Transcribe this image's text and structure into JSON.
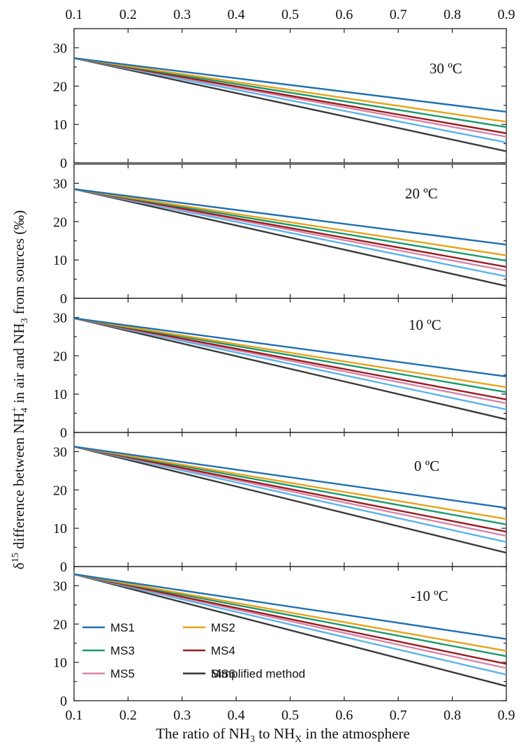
{
  "chart_data": {
    "type": "line",
    "x_axis": {
      "label_parts": [
        "The ratio of NH",
        "3",
        " to NH",
        "X",
        " in the atmosphere"
      ],
      "range": [
        0.1,
        0.9
      ],
      "ticks": [
        "0.1",
        "0.2",
        "0.3",
        "0.4",
        "0.5",
        "0.6",
        "0.7",
        "0.8",
        "0.9"
      ]
    },
    "y_axis": {
      "label_parts": [
        "δ",
        "15",
        " difference between NH",
        "4",
        "+",
        " in air and NH",
        "3",
        " from sources (‰)"
      ],
      "range": [
        0,
        35
      ],
      "ticks": [
        "0",
        "10",
        "20",
        "30"
      ]
    },
    "legend": {
      "placement": "bottom-left of last panel",
      "entries": [
        "MS1",
        "MS2",
        "MS3",
        "MS4",
        "MS5",
        "MS6",
        "Simplified method"
      ]
    },
    "series_colors": {
      "MS1": "#1f6fb2",
      "MS2": "#e8a21a",
      "MS3": "#1a9a6c",
      "MS4": "#9a1a1e",
      "MS5": "#d884a8",
      "MS6": "#5ab4ea",
      "Simplified method": "#3a3a3a"
    },
    "x": [
      0.1,
      0.9
    ],
    "panels": [
      {
        "label": "30 ºC",
        "series": [
          {
            "name": "MS1",
            "values": [
              27.3,
              13.3
            ]
          },
          {
            "name": "MS2",
            "values": [
              27.3,
              10.7
            ]
          },
          {
            "name": "MS3",
            "values": [
              27.3,
              9.3
            ]
          },
          {
            "name": "MS4",
            "values": [
              27.3,
              7.7
            ]
          },
          {
            "name": "MS5",
            "values": [
              27.3,
              6.8
            ]
          },
          {
            "name": "MS6",
            "values": [
              27.3,
              5.3
            ]
          },
          {
            "name": "Simplified method",
            "values": [
              27.3,
              3.0
            ]
          }
        ]
      },
      {
        "label": "20 ºC",
        "series": [
          {
            "name": "MS1",
            "values": [
              28.5,
              14.0
            ]
          },
          {
            "name": "MS2",
            "values": [
              28.5,
              11.2
            ]
          },
          {
            "name": "MS3",
            "values": [
              28.5,
              9.8
            ]
          },
          {
            "name": "MS4",
            "values": [
              28.5,
              8.2
            ]
          },
          {
            "name": "MS5",
            "values": [
              28.5,
              7.2
            ]
          },
          {
            "name": "MS6",
            "values": [
              28.5,
              5.7
            ]
          },
          {
            "name": "Simplified method",
            "values": [
              28.5,
              3.2
            ]
          }
        ]
      },
      {
        "label": "10 ºC",
        "series": [
          {
            "name": "MS1",
            "values": [
              29.8,
              14.6
            ]
          },
          {
            "name": "MS2",
            "values": [
              29.8,
              11.8
            ]
          },
          {
            "name": "MS3",
            "values": [
              29.8,
              10.5
            ]
          },
          {
            "name": "MS4",
            "values": [
              29.8,
              8.6
            ]
          },
          {
            "name": "MS5",
            "values": [
              29.8,
              7.6
            ]
          },
          {
            "name": "MS6",
            "values": [
              29.8,
              6.0
            ]
          },
          {
            "name": "Simplified method",
            "values": [
              29.8,
              3.4
            ]
          }
        ]
      },
      {
        "label": "0 ºC",
        "series": [
          {
            "name": "MS1",
            "values": [
              31.3,
              15.3
            ]
          },
          {
            "name": "MS2",
            "values": [
              31.3,
              12.4
            ]
          },
          {
            "name": "MS3",
            "values": [
              31.3,
              11.0
            ]
          },
          {
            "name": "MS4",
            "values": [
              31.3,
              9.1
            ]
          },
          {
            "name": "MS5",
            "values": [
              31.3,
              8.0
            ]
          },
          {
            "name": "MS6",
            "values": [
              31.3,
              6.4
            ]
          },
          {
            "name": "Simplified method",
            "values": [
              31.3,
              3.6
            ]
          }
        ]
      },
      {
        "label": "-10 ºC",
        "series": [
          {
            "name": "MS1",
            "values": [
              33.0,
              16.1
            ]
          },
          {
            "name": "MS2",
            "values": [
              33.0,
              13.0
            ]
          },
          {
            "name": "MS3",
            "values": [
              33.0,
              11.6
            ]
          },
          {
            "name": "MS4",
            "values": [
              33.0,
              9.6
            ]
          },
          {
            "name": "MS5",
            "values": [
              33.0,
              8.5
            ]
          },
          {
            "name": "MS6",
            "values": [
              33.0,
              6.8
            ]
          },
          {
            "name": "Simplified method",
            "values": [
              33.0,
              3.8
            ]
          }
        ]
      }
    ]
  }
}
